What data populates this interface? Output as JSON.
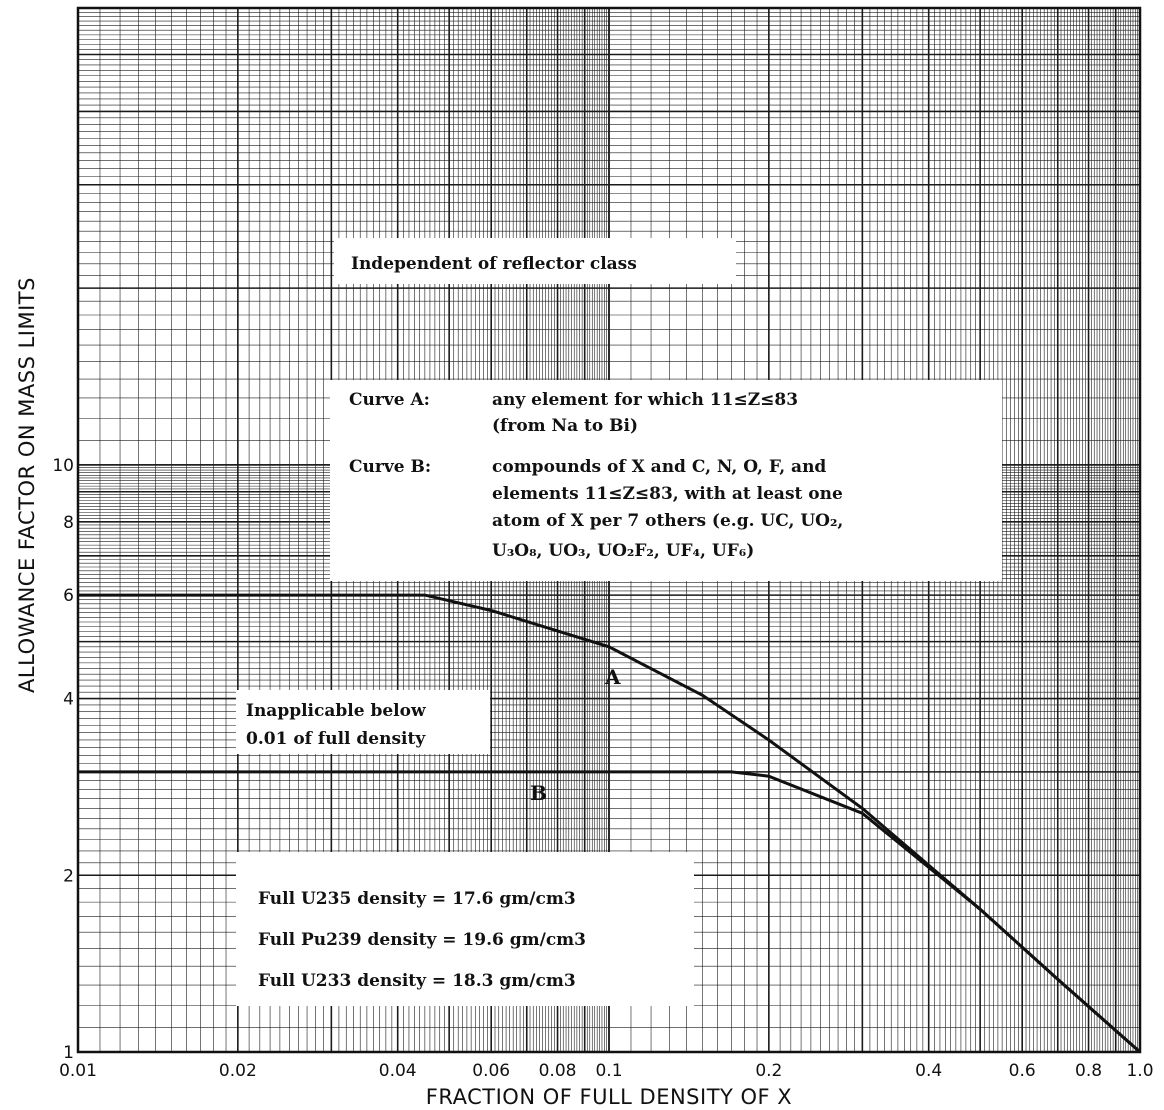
{
  "chart_data": {
    "type": "line",
    "xlabel": "FRACTION OF FULL DENSITY OF X",
    "ylabel": "ALLOWANCE FACTOR ON MASS LIMITS",
    "x_scale": "log",
    "y_scale": "log",
    "xlim": [
      0.01,
      1.0
    ],
    "ylim": [
      1,
      60
    ],
    "grid": true,
    "x_ticks": [
      {
        "value": 0.01,
        "label": "0.01"
      },
      {
        "value": 0.02,
        "label": "0.02"
      },
      {
        "value": 0.04,
        "label": "0.04"
      },
      {
        "value": 0.06,
        "label": "0.06"
      },
      {
        "value": 0.08,
        "label": "0.08"
      },
      {
        "value": 0.1,
        "label": "0.1"
      },
      {
        "value": 0.2,
        "label": "0.2"
      },
      {
        "value": 0.4,
        "label": "0.4"
      },
      {
        "value": 0.6,
        "label": "0.6"
      },
      {
        "value": 0.8,
        "label": "0.8"
      },
      {
        "value": 1.0,
        "label": "1.0"
      }
    ],
    "y_ticks": [
      {
        "value": 1,
        "label": "1"
      },
      {
        "value": 2,
        "label": "2"
      },
      {
        "value": 4,
        "label": "4"
      },
      {
        "value": 6,
        "label": "6"
      },
      {
        "value": 8,
        "label": "8"
      },
      {
        "value": 10,
        "label": "10"
      }
    ],
    "series": [
      {
        "name": "A",
        "x": [
          0.01,
          0.045,
          0.06,
          0.1,
          0.15,
          0.2,
          0.3,
          0.5,
          0.7,
          1.0
        ],
        "y": [
          6,
          6,
          5.65,
          4.9,
          4.05,
          3.4,
          2.6,
          1.75,
          1.33,
          1.0
        ]
      },
      {
        "name": "B",
        "x": [
          0.01,
          0.17,
          0.2,
          0.3,
          0.5,
          0.7,
          1.0
        ],
        "y": [
          3,
          3,
          2.95,
          2.55,
          1.75,
          1.33,
          1.0
        ]
      }
    ],
    "annotations": [
      {
        "id": "independent",
        "lines": [
          "Independent of reflector class"
        ]
      },
      {
        "id": "curve-a",
        "label": "Curve A:",
        "lines": [
          "any element for which 11≤Z≤83",
          "(from Na to Bi)"
        ]
      },
      {
        "id": "curve-b",
        "label": "Curve B:",
        "lines": [
          "compounds of X and C, N, O, F, and",
          "elements 11≤Z≤83, with at least one",
          "atom of X per 7 others (e.g. UC, UO₂,",
          "U₃O₈, UO₃, UO₂F₂, UF₄, UF₆)"
        ]
      },
      {
        "id": "inapplicable",
        "lines": [
          "Inapplicable below",
          "0.01 of full density"
        ]
      },
      {
        "id": "densities",
        "lines": [
          "Full U235 density = 17.6 gm/cm3",
          "Full Pu239 density = 19.6 gm/cm3",
          "Full U233 density = 18.3 gm/cm3"
        ]
      }
    ]
  },
  "text": {
    "ylabel": "ALLOWANCE FACTOR ON MASS LIMITS",
    "xlabel": "FRACTION OF FULL DENSITY OF X",
    "independent": "Independent of reflector class",
    "curve_a_label": "Curve A:",
    "curve_a_line1": "any element for which 11≤Z≤83",
    "curve_a_line2": "(from Na to Bi)",
    "curve_b_label": "Curve B:",
    "curve_b_line1": "compounds of X and C, N, O, F, and",
    "curve_b_line2": "elements 11≤Z≤83, with at least one",
    "curve_b_line3": "atom of X per 7 others (e.g. UC, UO₂,",
    "curve_b_line4": "U₃O₈, UO₃, UO₂F₂, UF₄, UF₆)",
    "inapplicable_line1": "Inapplicable below",
    "inapplicable_line2": "0.01 of full density",
    "density_u235": "Full U235 density = 17.6 gm/cm3",
    "density_pu239": "Full Pu239 density = 19.6 gm/cm3",
    "density_u233": "Full U233 density = 18.3 gm/cm3",
    "label_a": "A",
    "label_b": "B"
  },
  "colors": {
    "ink": "#111111",
    "grid": "#1a1a1a",
    "background": "#ffffff"
  }
}
